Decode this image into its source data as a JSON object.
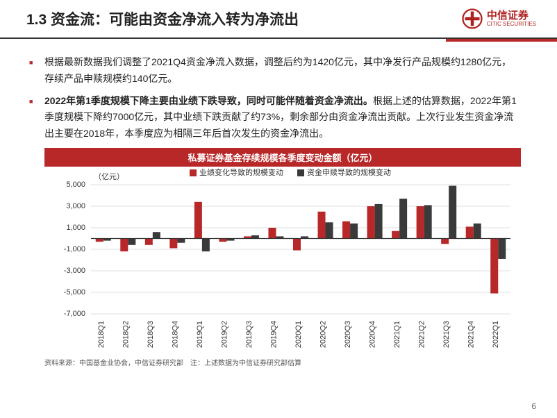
{
  "header": {
    "title": "1.3 资金流：可能由资金净流入转为净流出",
    "logo_cn": "中信证券",
    "logo_en": "CITIC SECURITIES",
    "logo_color": "#b02020"
  },
  "bullets": [
    {
      "text": "根据最新数据我们调整了2021Q4资金净流入数据，调整后约为1420亿元，其中净发行产品规模约1280亿元，存续产品申赎规模约140亿元。",
      "bold_span": null
    },
    {
      "text_prefix_bold": "2022年第1季度规模下降主要由业绩下跌导致，同时可能伴随着资金净流出。",
      "text_rest": "根据上述的估算数据，2022年第1季度规模下降约7000亿元，其中业绩下跌贡献了约73%，剩余部分由资金净流出贡献。上次行业发生资金净流出主要在2018年，本季度应为相隔三年后首次发生的资金净流出。"
    }
  ],
  "chart": {
    "type": "bar-grouped",
    "title": "私募证券基金存续规模各季度变动金额（亿元）",
    "categories": [
      "2018Q1",
      "2018Q2",
      "2018Q3",
      "2018Q4",
      "2019Q1",
      "2019Q2",
      "2019Q3",
      "2019Q4",
      "2020Q1",
      "2020Q2",
      "2020Q3",
      "2020Q4",
      "2021Q1",
      "2021Q2",
      "2021Q3",
      "2021Q4",
      "2022Q1"
    ],
    "series": [
      {
        "name": "业绩变化导致的规模变动",
        "color": "#b82828",
        "values": [
          -300,
          -1200,
          -600,
          -900,
          3400,
          -300,
          200,
          1000,
          -1100,
          2500,
          1600,
          3000,
          700,
          3000,
          -500,
          1100,
          -5100
        ]
      },
      {
        "name": "资金申赎导致的规模变动",
        "color": "#3a3a3a",
        "values": [
          -200,
          -600,
          600,
          -400,
          -1200,
          -200,
          300,
          200,
          200,
          1500,
          1400,
          3200,
          3700,
          3100,
          4900,
          1400,
          -1900
        ]
      }
    ],
    "ylim": [
      -7000,
      5000
    ],
    "ytick_step": 2000,
    "ylabel_unit": "（亿元）",
    "background": "#ffffff",
    "grid_color": "#bfbfbf",
    "axis_color": "#333333",
    "xlabel_fontsize": 11,
    "ytick_fontsize": 11,
    "xlabel_rotation": -90,
    "bar_group_width": 0.62,
    "legend_position": "top"
  },
  "source": "资料来源：中国基金业协会，中信证券研究部　注：上述数据为中信证券研究部估算",
  "page_number": "6"
}
